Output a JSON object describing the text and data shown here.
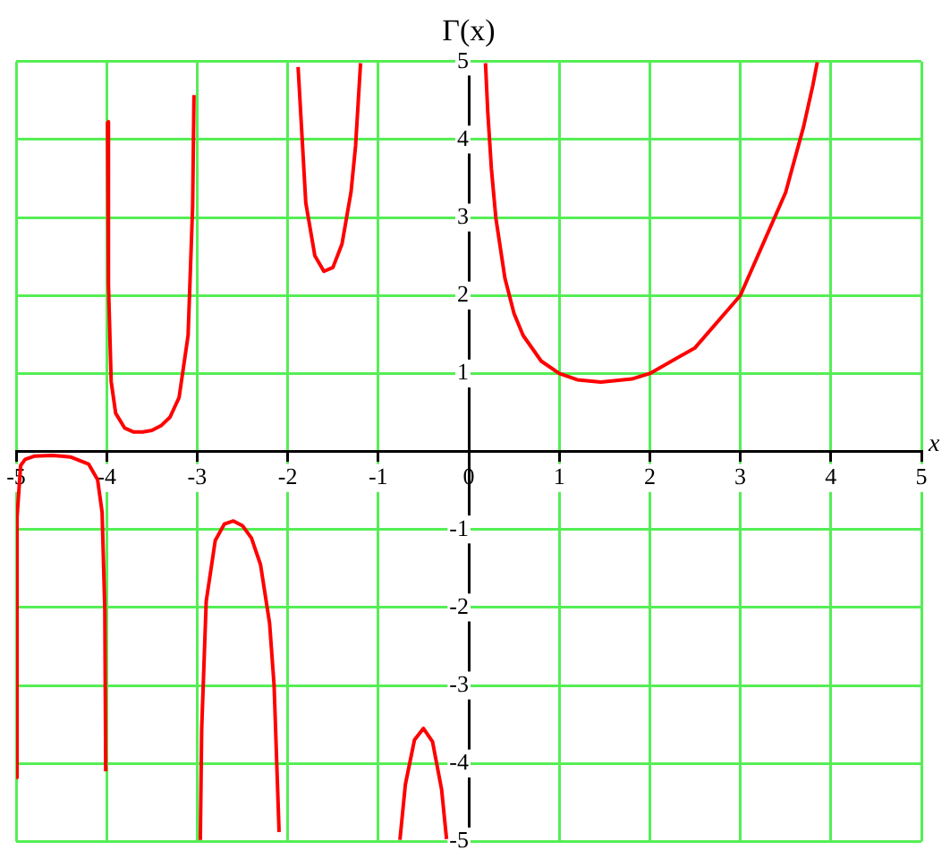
{
  "chart_data": {
    "type": "line",
    "title": "Γ(x)",
    "xlabel": "x",
    "x": [
      -4.998,
      -4.99,
      -4.95,
      -4.9,
      -4.8,
      -4.6,
      -4.5,
      -4.4,
      -4.2,
      -4.1,
      -4.05,
      -4.02,
      -4.01,
      -4.005,
      -3.99,
      -3.98,
      -3.95,
      -3.9,
      -3.8,
      -3.7,
      -3.6,
      -3.5,
      -3.4,
      -3.3,
      -3.2,
      -3.1,
      -3.05,
      -3.035,
      -3.0,
      -2.965,
      -2.95,
      -2.9,
      -2.8,
      -2.7,
      -2.6,
      -2.5,
      -2.4,
      -2.3,
      -2.2,
      -2.15,
      -2.095,
      -2.0,
      -1.885,
      -1.8,
      -1.7,
      -1.6,
      -1.5,
      -1.4,
      -1.3,
      -1.25,
      -1.195,
      -1.0,
      -0.76,
      -0.7,
      -0.6,
      -0.5,
      -0.4,
      -0.3,
      -0.245,
      0.0,
      0.185,
      0.21,
      0.25,
      0.3,
      0.4,
      0.5,
      0.6,
      0.8,
      1,
      1.2,
      1.46,
      1.8,
      2,
      2.5,
      3,
      3.5,
      3.7,
      3.8,
      3.85
    ],
    "series": [
      {
        "color": "#ff0000",
        "values": [
          -4.18,
          -0.85,
          -0.18,
          -0.1,
          -0.06,
          -0.05,
          -0.06,
          -0.07,
          -0.16,
          -0.36,
          -0.78,
          -2.02,
          -4.1,
          null,
          4.23,
          2.15,
          0.9,
          0.49,
          0.3,
          0.25,
          0.25,
          0.27,
          0.33,
          0.44,
          0.69,
          1.49,
          3.14,
          4.57,
          null,
          -4.98,
          -3.56,
          -1.92,
          -1.14,
          -0.93,
          -0.89,
          -0.95,
          -1.11,
          -1.45,
          -2.2,
          -3.0,
          -4.88,
          null,
          4.93,
          3.19,
          2.51,
          2.31,
          2.36,
          2.66,
          3.33,
          3.92,
          4.98,
          null,
          -4.98,
          -4.27,
          -3.7,
          -3.55,
          -3.72,
          -4.33,
          -4.97,
          null,
          4.98,
          4.36,
          3.63,
          2.99,
          2.22,
          1.77,
          1.49,
          1.16,
          1,
          0.92,
          0.89,
          0.93,
          1,
          1.33,
          2,
          3.32,
          4.17,
          4.69,
          4.99
        ]
      }
    ],
    "xlim": [
      -5,
      5
    ],
    "ylim": [
      -5,
      5
    ],
    "xticks": [
      -5,
      -4,
      -3,
      -2,
      -1,
      0,
      1,
      2,
      3,
      4,
      5
    ],
    "yticks": [
      -5,
      -4,
      -3,
      -2,
      -1,
      {
        "value": 0,
        "label": null
      },
      1,
      2,
      3,
      4,
      5
    ],
    "grid": true,
    "marker": "none",
    "line_style": "solid",
    "legend": false
  }
}
